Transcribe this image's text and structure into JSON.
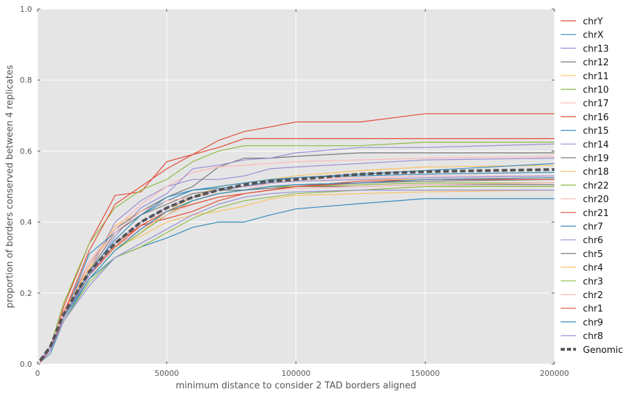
{
  "chart_data": {
    "type": "line",
    "title": "",
    "xlabel": "minimum distance to consider 2 TAD borders aligned",
    "ylabel": "proportion of borders conserved between 4 replicates",
    "xlim": [
      0,
      200000
    ],
    "ylim": [
      0.0,
      1.0
    ],
    "x_ticks": [
      "0",
      "50000",
      "100000",
      "150000",
      "200000"
    ],
    "y_ticks": [
      "0.0",
      "0.2",
      "0.4",
      "0.6",
      "0.8",
      "1.0"
    ],
    "grid": true,
    "background": "#e5e5e5",
    "legend_position": "right-outside",
    "x": [
      1000,
      5000,
      10000,
      20000,
      30000,
      40000,
      50000,
      60000,
      70000,
      80000,
      90000,
      100000,
      125000,
      150000,
      200000
    ],
    "series": [
      {
        "name": "chrY",
        "color": "#e24a33",
        "values": [
          0.005,
          0.04,
          0.16,
          0.34,
          0.475,
          0.485,
          0.57,
          0.59,
          0.63,
          0.655,
          0.668,
          0.682,
          0.682,
          0.705,
          0.705
        ]
      },
      {
        "name": "chrX",
        "color": "#348abd",
        "values": [
          0.005,
          0.03,
          0.12,
          0.24,
          0.3,
          0.33,
          0.355,
          0.385,
          0.4,
          0.4,
          0.42,
          0.437,
          0.452,
          0.466,
          0.466
        ]
      },
      {
        "name": "chr13",
        "color": "#988ed5",
        "values": [
          0.01,
          0.05,
          0.14,
          0.26,
          0.4,
          0.46,
          0.5,
          0.52,
          0.52,
          0.53,
          0.55,
          0.555,
          0.565,
          0.575,
          0.58
        ]
      },
      {
        "name": "chr12",
        "color": "#777777",
        "values": [
          0.01,
          0.05,
          0.15,
          0.28,
          0.38,
          0.43,
          0.47,
          0.5,
          0.555,
          0.58,
          0.58,
          0.585,
          0.595,
          0.595,
          0.595
        ]
      },
      {
        "name": "chr11",
        "color": "#fbc15e",
        "values": [
          0.01,
          0.05,
          0.15,
          0.27,
          0.39,
          0.43,
          0.46,
          0.47,
          0.5,
          0.51,
          0.52,
          0.53,
          0.545,
          0.555,
          0.56
        ]
      },
      {
        "name": "chr10",
        "color": "#8eba42",
        "values": [
          0.01,
          0.05,
          0.17,
          0.34,
          0.44,
          0.49,
          0.52,
          0.57,
          0.6,
          0.615,
          0.615,
          0.615,
          0.615,
          0.625,
          0.625
        ]
      },
      {
        "name": "chr17",
        "color": "#ffb5b8",
        "values": [
          0.01,
          0.05,
          0.15,
          0.29,
          0.38,
          0.45,
          0.5,
          0.54,
          0.555,
          0.56,
          0.565,
          0.57,
          0.575,
          0.58,
          0.585
        ]
      },
      {
        "name": "chr16",
        "color": "#e24a33",
        "values": [
          0.005,
          0.04,
          0.14,
          0.32,
          0.45,
          0.5,
          0.55,
          0.59,
          0.61,
          0.635,
          0.635,
          0.635,
          0.635,
          0.635,
          0.635
        ]
      },
      {
        "name": "chr15",
        "color": "#348abd",
        "values": [
          0.01,
          0.05,
          0.13,
          0.31,
          0.37,
          0.42,
          0.46,
          0.49,
          0.5,
          0.51,
          0.52,
          0.525,
          0.53,
          0.535,
          0.54
        ]
      },
      {
        "name": "chr14",
        "color": "#988ed5",
        "values": [
          0.01,
          0.04,
          0.13,
          0.25,
          0.36,
          0.44,
          0.48,
          0.55,
          0.56,
          0.575,
          0.58,
          0.595,
          0.61,
          0.61,
          0.62
        ]
      },
      {
        "name": "chr19",
        "color": "#777777",
        "values": [
          0.01,
          0.05,
          0.13,
          0.26,
          0.37,
          0.42,
          0.45,
          0.48,
          0.49,
          0.49,
          0.495,
          0.5,
          0.5,
          0.505,
          0.505
        ]
      },
      {
        "name": "chr18",
        "color": "#fbc15e",
        "values": [
          0.01,
          0.05,
          0.14,
          0.27,
          0.33,
          0.36,
          0.4,
          0.42,
          0.43,
          0.445,
          0.465,
          0.475,
          0.48,
          0.485,
          0.49
        ]
      },
      {
        "name": "chr22",
        "color": "#8eba42",
        "values": [
          0.01,
          0.04,
          0.12,
          0.23,
          0.3,
          0.33,
          0.37,
          0.41,
          0.44,
          0.46,
          0.47,
          0.48,
          0.49,
          0.5,
          0.5
        ]
      },
      {
        "name": "chr20",
        "color": "#ffb5b8",
        "values": [
          0.01,
          0.05,
          0.14,
          0.28,
          0.37,
          0.43,
          0.46,
          0.47,
          0.48,
          0.49,
          0.51,
          0.52,
          0.525,
          0.53,
          0.53
        ]
      },
      {
        "name": "chr21",
        "color": "#e24a33",
        "values": [
          0.005,
          0.04,
          0.13,
          0.25,
          0.34,
          0.39,
          0.41,
          0.43,
          0.46,
          0.48,
          0.49,
          0.5,
          0.515,
          0.52,
          0.525
        ]
      },
      {
        "name": "chr7",
        "color": "#348abd",
        "values": [
          0.01,
          0.05,
          0.13,
          0.26,
          0.35,
          0.42,
          0.47,
          0.49,
          0.495,
          0.5,
          0.515,
          0.525,
          0.535,
          0.545,
          0.565
        ]
      },
      {
        "name": "chr6",
        "color": "#988ed5",
        "values": [
          0.01,
          0.04,
          0.12,
          0.22,
          0.3,
          0.34,
          0.38,
          0.42,
          0.45,
          0.47,
          0.48,
          0.485,
          0.49,
          0.49,
          0.49
        ]
      },
      {
        "name": "chr5",
        "color": "#777777",
        "values": [
          0.01,
          0.05,
          0.13,
          0.25,
          0.33,
          0.38,
          0.43,
          0.46,
          0.48,
          0.49,
          0.5,
          0.505,
          0.51,
          0.515,
          0.52
        ]
      },
      {
        "name": "chr4",
        "color": "#fbc15e",
        "values": [
          0.01,
          0.05,
          0.13,
          0.24,
          0.32,
          0.37,
          0.43,
          0.47,
          0.49,
          0.5,
          0.51,
          0.515,
          0.52,
          0.52,
          0.525
        ]
      },
      {
        "name": "chr3",
        "color": "#8eba42",
        "values": [
          0.01,
          0.05,
          0.13,
          0.24,
          0.32,
          0.37,
          0.42,
          0.46,
          0.48,
          0.49,
          0.5,
          0.5,
          0.505,
          0.51,
          0.51
        ]
      },
      {
        "name": "chr2",
        "color": "#ffb5b8",
        "values": [
          0.01,
          0.05,
          0.13,
          0.25,
          0.33,
          0.38,
          0.42,
          0.45,
          0.47,
          0.48,
          0.49,
          0.495,
          0.5,
          0.505,
          0.51
        ]
      },
      {
        "name": "chr1",
        "color": "#e24a33",
        "values": [
          0.01,
          0.05,
          0.13,
          0.25,
          0.33,
          0.39,
          0.43,
          0.45,
          0.47,
          0.48,
          0.49,
          0.5,
          0.51,
          0.52,
          0.52
        ]
      },
      {
        "name": "chr9",
        "color": "#348abd",
        "values": [
          0.01,
          0.05,
          0.13,
          0.24,
          0.32,
          0.38,
          0.43,
          0.46,
          0.48,
          0.49,
          0.5,
          0.505,
          0.51,
          0.52,
          0.525
        ]
      },
      {
        "name": "chr8",
        "color": "#988ed5",
        "values": [
          0.01,
          0.05,
          0.13,
          0.25,
          0.34,
          0.4,
          0.44,
          0.47,
          0.49,
          0.5,
          0.51,
          0.515,
          0.52,
          0.525,
          0.53
        ]
      },
      {
        "name": "Genomic",
        "color": "#555555",
        "dashed": true,
        "values": [
          0.01,
          0.05,
          0.14,
          0.26,
          0.34,
          0.4,
          0.44,
          0.47,
          0.49,
          0.505,
          0.515,
          0.52,
          0.535,
          0.542,
          0.548
        ]
      }
    ]
  }
}
